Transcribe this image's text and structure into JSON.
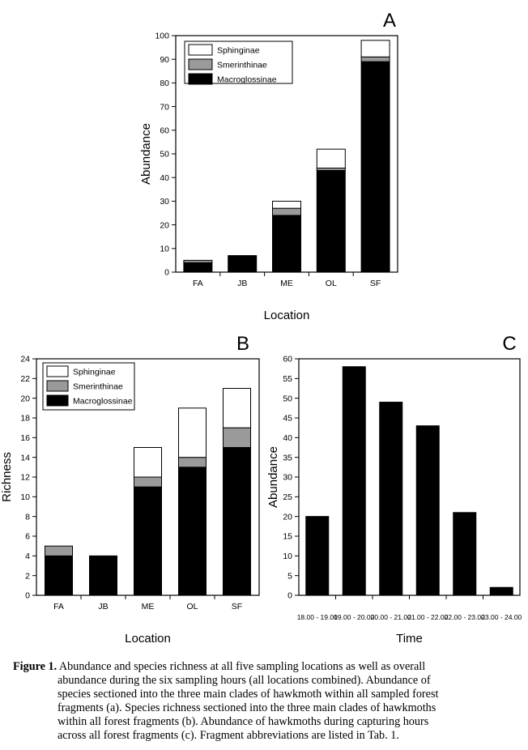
{
  "chart_data": [
    {
      "type": "bar",
      "panel_letter": "A",
      "stacked": true,
      "xlabel": "Location",
      "ylabel": "Abundance",
      "ylim": [
        0,
        100
      ],
      "yticks": [
        0,
        10,
        20,
        30,
        40,
        50,
        60,
        70,
        80,
        90,
        100
      ],
      "categories": [
        "FA",
        "JB",
        "ME",
        "OL",
        "SF"
      ],
      "series": [
        {
          "name": "Macroglossinae",
          "color": "#000000",
          "values": [
            4,
            7,
            24,
            43,
            89
          ]
        },
        {
          "name": "Smerinthinae",
          "color": "#9a9a9a",
          "values": [
            1,
            0,
            3,
            1,
            2
          ]
        },
        {
          "name": "Sphinginae",
          "color": "#ffffff",
          "values": [
            0,
            0,
            3,
            8,
            7
          ]
        }
      ],
      "legend": {
        "position": "top-left",
        "order": [
          "Sphinginae",
          "Smerinthinae",
          "Macroglossinae"
        ]
      }
    },
    {
      "type": "bar",
      "panel_letter": "B",
      "stacked": true,
      "xlabel": "Location",
      "ylabel": "Richness",
      "ylim": [
        0,
        24
      ],
      "yticks": [
        0,
        2,
        4,
        6,
        8,
        10,
        12,
        14,
        16,
        18,
        20,
        22,
        24
      ],
      "categories": [
        "FA",
        "JB",
        "ME",
        "OL",
        "SF"
      ],
      "series": [
        {
          "name": "Macroglossinae",
          "color": "#000000",
          "values": [
            4,
            4,
            11,
            13,
            15
          ]
        },
        {
          "name": "Smerinthinae",
          "color": "#9a9a9a",
          "values": [
            1,
            0,
            1,
            1,
            2
          ]
        },
        {
          "name": "Sphinginae",
          "color": "#ffffff",
          "values": [
            0,
            0,
            3,
            5,
            4
          ]
        }
      ],
      "legend": {
        "position": "top-left",
        "order": [
          "Sphinginae",
          "Smerinthinae",
          "Macroglossinae"
        ]
      }
    },
    {
      "type": "bar",
      "panel_letter": "C",
      "stacked": false,
      "xlabel": "Time",
      "ylabel": "Abundance",
      "ylim": [
        0,
        60
      ],
      "yticks": [
        0,
        5,
        10,
        15,
        20,
        25,
        30,
        35,
        40,
        45,
        50,
        55,
        60
      ],
      "categories": [
        "18.00 - 19.00",
        "19.00 - 20.00",
        "20.00 - 21.00",
        "21.00 - 22.00",
        "22.00 - 23.00",
        "23.00 - 24.00"
      ],
      "series": [
        {
          "color": "#000000",
          "values": [
            20,
            58,
            49,
            43,
            21,
            2
          ]
        }
      ]
    }
  ],
  "caption": {
    "label": "Figure 1.",
    "lines": [
      "Abundance and species richness at all five sampling locations as well as overall",
      "abundance during the six sampling hours (all locations combined). Abundance of",
      "species sectioned into the three main clades of hawkmoth within all sampled forest",
      "fragments (a). Species richness sectioned into the three main clades of hawkmoths",
      "within all forest fragments (b). Abundance of hawkmoths during capturing hours",
      "across all forest fragments (c). Fragment abbreviations are listed in Tab. 1."
    ]
  }
}
